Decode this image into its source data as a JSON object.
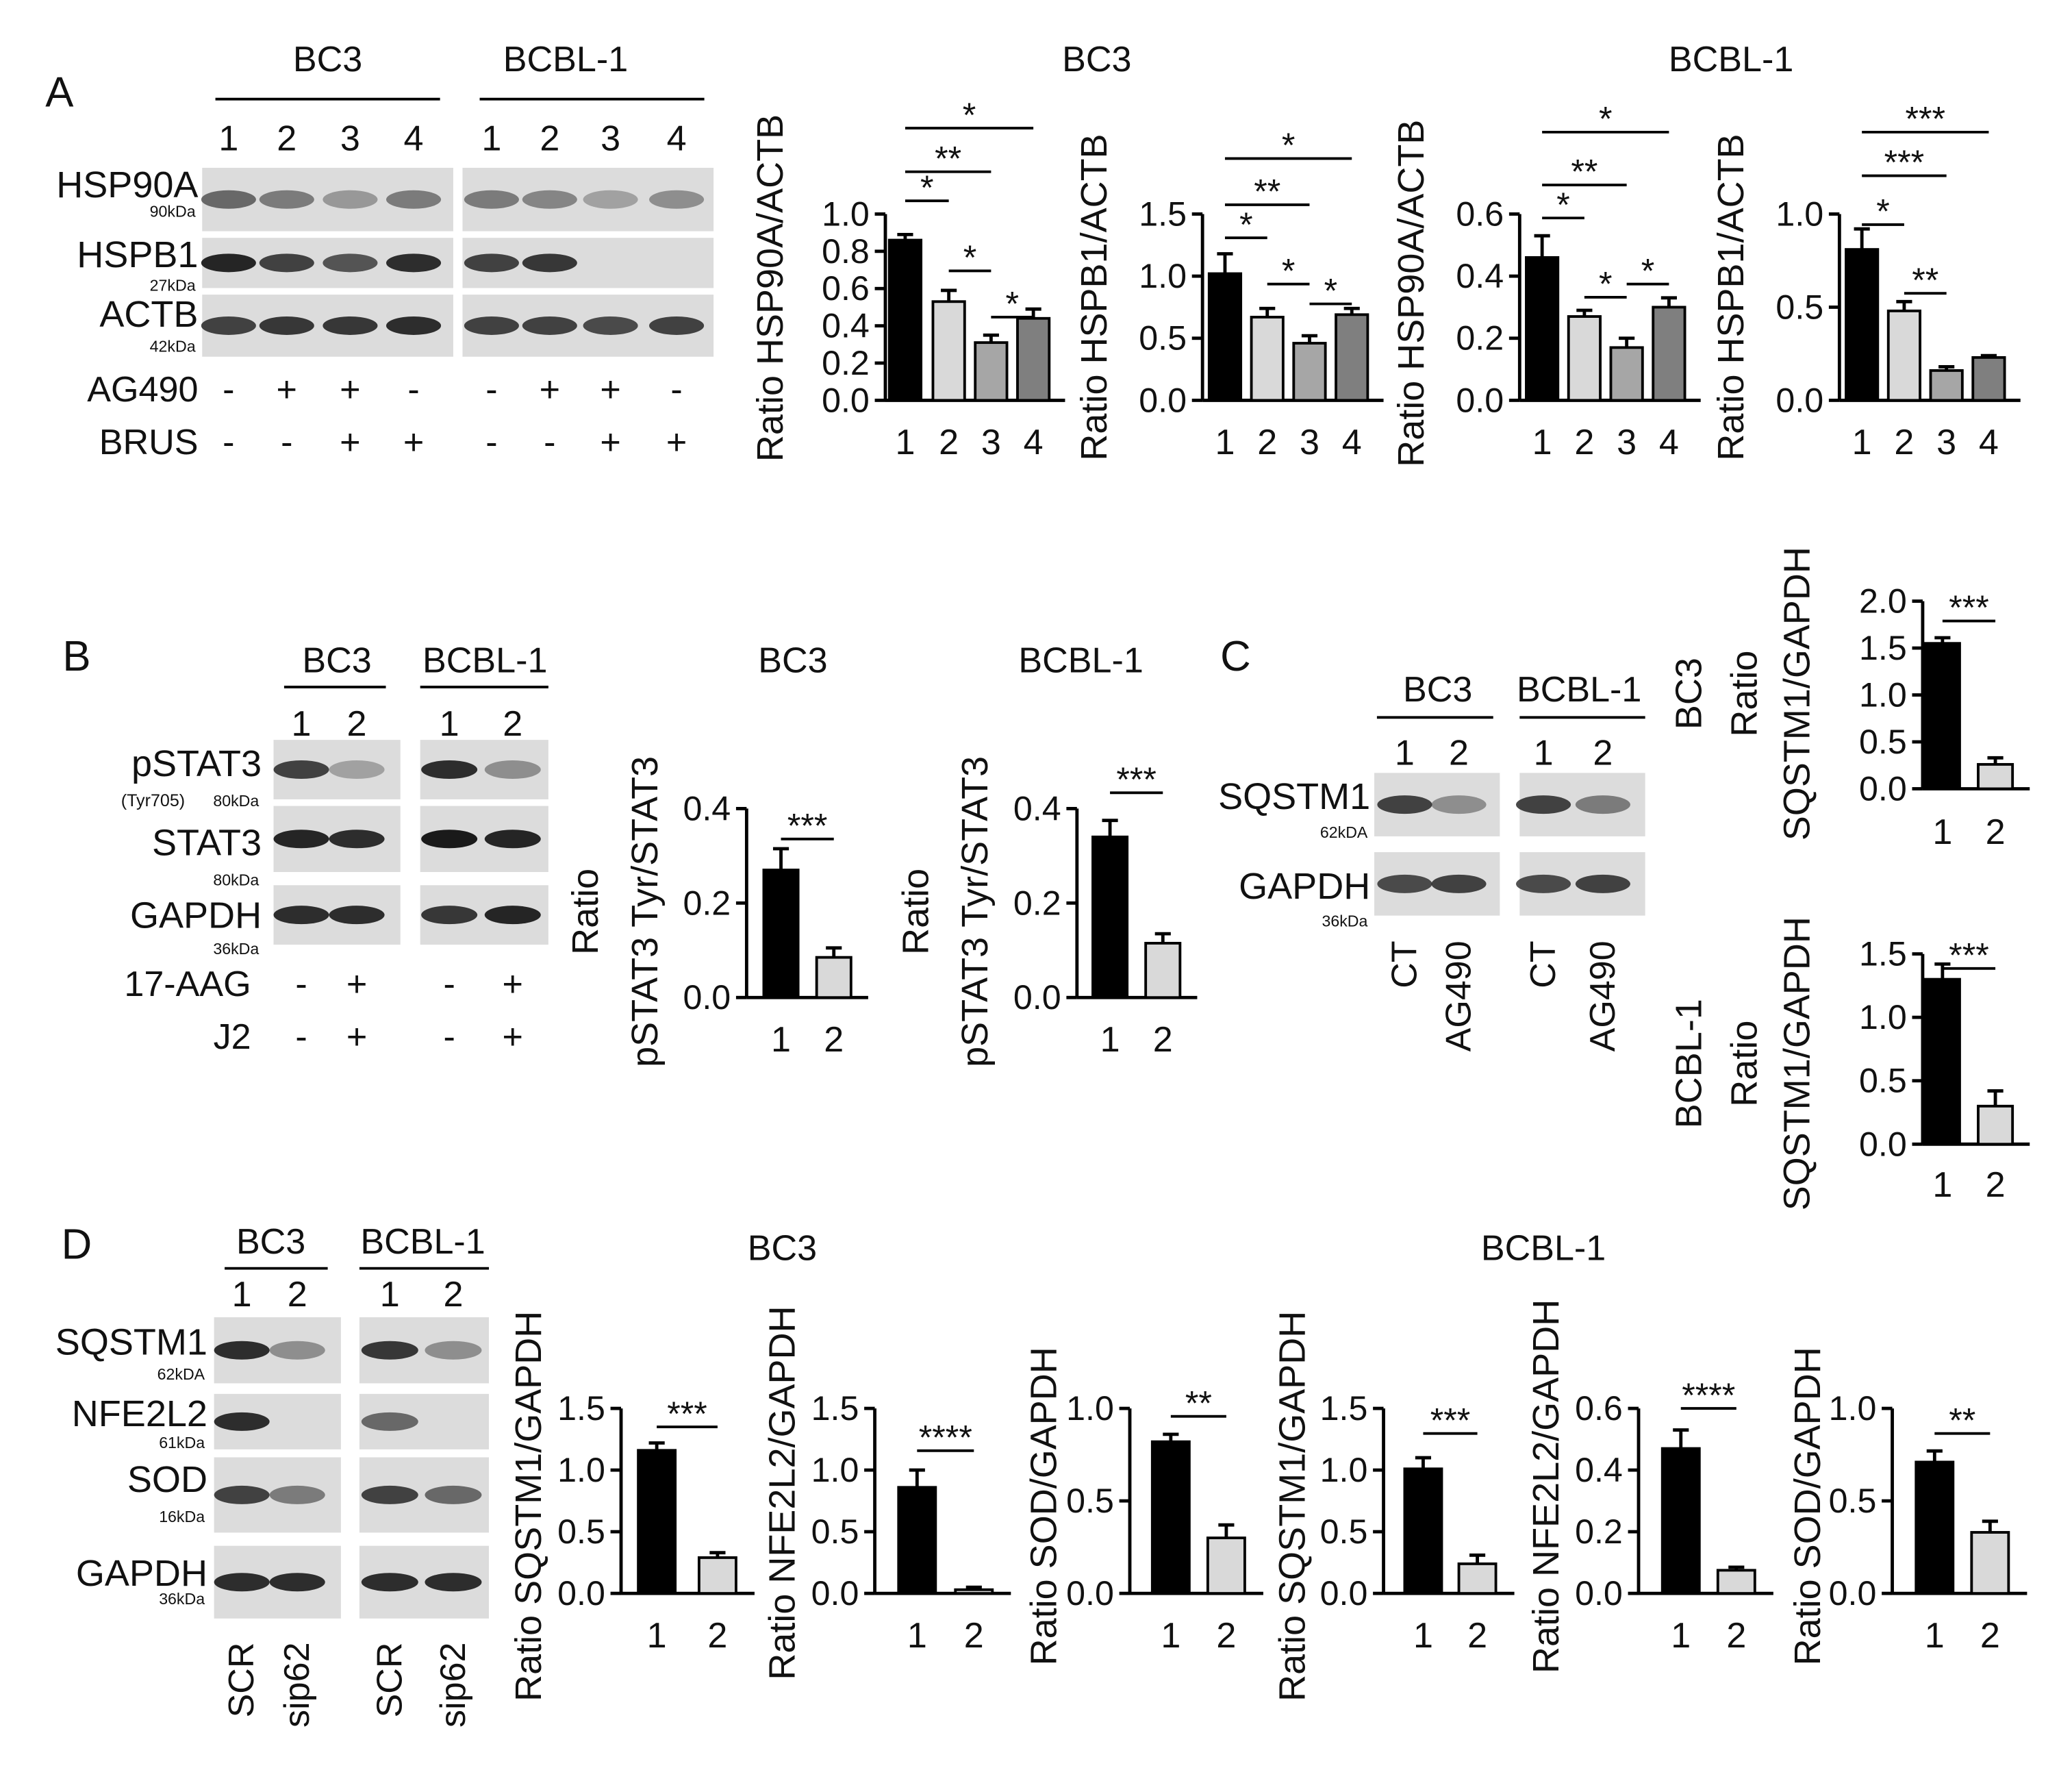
{
  "panel_letters": [
    "A",
    "B",
    "C",
    "D"
  ],
  "headings": [
    "BC3",
    "BCBL-1",
    "BC3",
    "BCBL-1",
    "BC3",
    "BCBL-1"
  ],
  "blots": [
    {
      "groups": [
        "BC3",
        "BCBL-1"
      ],
      "lanes": [
        "1",
        "2",
        "3",
        "4"
      ],
      "proteins": [
        {
          "name": "HSP90A",
          "size": "90kDa"
        },
        {
          "name": "HSPB1",
          "size": "27kDa"
        },
        {
          "name": "ACTB",
          "size": "42kDa"
        }
      ],
      "treatments": [
        {
          "name": "AG490",
          "marks": [
            "-",
            "+",
            "+",
            "-"
          ]
        },
        {
          "name": "BRUS",
          "marks": [
            "-",
            "-",
            "+",
            "+"
          ]
        }
      ]
    },
    {
      "groups": [
        "BC3",
        "BCBL-1"
      ],
      "lanes": [
        "1",
        "2"
      ],
      "proteins": [
        {
          "name": "pSTAT3",
          "note": "(Tyr705)",
          "size": "80kDa"
        },
        {
          "name": "STAT3",
          "size": "80kDa"
        },
        {
          "name": "GAPDH",
          "size": "36kDa"
        }
      ],
      "treatments": [
        {
          "name": "17-AAG",
          "marks": [
            "-",
            "+"
          ]
        },
        {
          "name": "J2",
          "marks": [
            "-",
            "+"
          ]
        }
      ]
    },
    {
      "groups": [
        "BC3",
        "BCBL-1"
      ],
      "lanes": [
        "1",
        "2"
      ],
      "proteins": [
        {
          "name": "SQSTM1",
          "size": "62kDA"
        },
        {
          "name": "GAPDH",
          "size": "36kDa"
        }
      ],
      "conditions": [
        "CT",
        "AG490"
      ]
    },
    {
      "groups": [
        "BC3",
        "BCBL-1"
      ],
      "lanes": [
        "1",
        "2"
      ],
      "proteins": [
        {
          "name": "SQSTM1",
          "size": "62kDA"
        },
        {
          "name": "NFE2L2",
          "size": "61kDa"
        },
        {
          "name": "SOD",
          "size": "16kDa"
        },
        {
          "name": "GAPDH",
          "size": "36kDa"
        }
      ],
      "conditions": [
        "SCR",
        "sip62"
      ]
    }
  ],
  "chart_data": [
    {
      "type": "bar",
      "ylabel": [
        "Ratio HSP90A/ACTB"
      ],
      "categories": [
        "1",
        "2",
        "3",
        "4"
      ],
      "values": [
        0.86,
        0.53,
        0.31,
        0.44
      ],
      "errors": [
        0.03,
        0.06,
        0.04,
        0.05
      ],
      "colors": [
        "#000000",
        "#d9d9d9",
        "#a6a6a6",
        "#7f7f7f"
      ],
      "ylim": [
        0,
        1
      ],
      "yticks": [
        {
          "value": 0,
          "label": "0.0"
        },
        0.2,
        0.4,
        0.6,
        0.8,
        {
          "value": 1,
          "label": "1.0"
        }
      ],
      "significance": [
        "*",
        "**",
        "*",
        "*",
        "*"
      ]
    },
    {
      "type": "bar",
      "ylabel": [
        "Ratio HSPB1/ACTB"
      ],
      "categories": [
        "1",
        "2",
        "3",
        "4"
      ],
      "values": [
        1.02,
        0.67,
        0.46,
        0.69
      ],
      "errors": [
        0.16,
        0.07,
        0.06,
        0.05
      ],
      "colors": [
        "#000000",
        "#d9d9d9",
        "#a6a6a6",
        "#7f7f7f"
      ],
      "ylim": [
        0,
        1.5
      ],
      "yticks": [
        {
          "value": 0,
          "label": "0.0"
        },
        0.5,
        {
          "value": 1,
          "label": "1.0"
        },
        1.5
      ],
      "significance": [
        "*",
        "**",
        "*",
        "*",
        "*"
      ]
    },
    {
      "type": "bar",
      "ylabel": [
        "Ratio HSP90A/ACTB"
      ],
      "categories": [
        "1",
        "2",
        "3",
        "4"
      ],
      "values": [
        0.46,
        0.27,
        0.17,
        0.3
      ],
      "errors": [
        0.07,
        0.02,
        0.03,
        0.03
      ],
      "colors": [
        "#000000",
        "#d9d9d9",
        "#a6a6a6",
        "#7f7f7f"
      ],
      "ylim": [
        0,
        0.6
      ],
      "yticks": [
        {
          "value": 0,
          "label": "0.0"
        },
        0.2,
        0.4,
        0.6
      ],
      "significance": [
        "*",
        "**",
        "*",
        "*",
        "*"
      ]
    },
    {
      "type": "bar",
      "ylabel": [
        "Ratio HSPB1/ACTB"
      ],
      "categories": [
        "1",
        "2",
        "3",
        "4"
      ],
      "values": [
        0.81,
        0.48,
        0.16,
        0.23
      ],
      "errors": [
        0.11,
        0.05,
        0.02,
        0.01
      ],
      "colors": [
        "#000000",
        "#d9d9d9",
        "#a6a6a6",
        "#7f7f7f"
      ],
      "ylim": [
        0,
        1
      ],
      "yticks": [
        {
          "value": 0,
          "label": "0.0"
        },
        0.5,
        {
          "value": 1,
          "label": "1.0"
        }
      ],
      "significance": [
        "*",
        "***",
        "***",
        "**"
      ]
    },
    {
      "type": "bar",
      "ylabel": [
        "Ratio",
        "pSTAT3 Tyr/STAT3"
      ],
      "categories": [
        "1",
        "2"
      ],
      "values": [
        0.27,
        0.085
      ],
      "errors": [
        0.045,
        0.02
      ],
      "colors": [
        "#000000",
        "#d9d9d9"
      ],
      "ylim": [
        0,
        0.4
      ],
      "yticks": [
        {
          "value": 0,
          "label": "0.0"
        },
        0.2,
        0.4
      ],
      "significance": [
        "***"
      ]
    },
    {
      "type": "bar",
      "ylabel": [
        "Ratio",
        "pSTAT3 Tyr/STAT3"
      ],
      "categories": [
        "1",
        "2"
      ],
      "values": [
        0.34,
        0.115
      ],
      "errors": [
        0.035,
        0.02
      ],
      "colors": [
        "#000000",
        "#d9d9d9"
      ],
      "ylim": [
        0,
        0.4
      ],
      "yticks": [
        {
          "value": 0,
          "label": "0.0"
        },
        0.2,
        0.4
      ],
      "significance": [
        "***"
      ]
    },
    {
      "type": "bar",
      "ylabel": [
        "BC3",
        "Ratio",
        "SQSTM1/GAPDH"
      ],
      "categories": [
        "1",
        "2"
      ],
      "values": [
        1.55,
        0.26
      ],
      "errors": [
        0.06,
        0.07
      ],
      "colors": [
        "#000000",
        "#d9d9d9"
      ],
      "ylim": [
        0,
        2
      ],
      "yticks": [
        {
          "value": 0,
          "label": "0.0"
        },
        0.5,
        {
          "value": 1,
          "label": "1.0"
        },
        1.5,
        {
          "value": 2,
          "label": "2.0"
        }
      ],
      "significance": [
        "***"
      ]
    },
    {
      "type": "bar",
      "ylabel": [
        "BCBL-1",
        "Ratio",
        "SQSTM1/GAPDH"
      ],
      "categories": [
        "1",
        "2"
      ],
      "values": [
        1.3,
        0.3
      ],
      "errors": [
        0.12,
        0.12
      ],
      "colors": [
        "#000000",
        "#d9d9d9"
      ],
      "ylim": [
        0,
        1.5
      ],
      "yticks": [
        {
          "value": 0,
          "label": "0.0"
        },
        0.5,
        {
          "value": 1,
          "label": "1.0"
        },
        1.5
      ],
      "significance": [
        "***"
      ]
    },
    {
      "type": "bar",
      "ylabel": [
        "Ratio SQSTM1/GAPDH"
      ],
      "categories": [
        "1",
        "2"
      ],
      "values": [
        1.16,
        0.29
      ],
      "errors": [
        0.06,
        0.04
      ],
      "colors": [
        "#000000",
        "#d9d9d9"
      ],
      "ylim": [
        0,
        1.5
      ],
      "yticks": [
        {
          "value": 0,
          "label": "0.0"
        },
        0.5,
        {
          "value": 1,
          "label": "1.0"
        },
        1.5
      ],
      "significance": [
        "***"
      ]
    },
    {
      "type": "bar",
      "ylabel": [
        "Ratio NFE2L2/GAPDH"
      ],
      "categories": [
        "1",
        "2"
      ],
      "values": [
        0.86,
        0.03
      ],
      "errors": [
        0.14,
        0.02
      ],
      "colors": [
        "#000000",
        "#d9d9d9"
      ],
      "ylim": [
        0,
        1.5
      ],
      "yticks": [
        {
          "value": 0,
          "label": "0.0"
        },
        0.5,
        {
          "value": 1,
          "label": "1.0"
        },
        1.5
      ],
      "significance": [
        "****"
      ]
    },
    {
      "type": "bar",
      "ylabel": [
        "Ratio SOD/GAPDH"
      ],
      "categories": [
        "1",
        "2"
      ],
      "values": [
        0.82,
        0.3
      ],
      "errors": [
        0.04,
        0.07
      ],
      "colors": [
        "#000000",
        "#d9d9d9"
      ],
      "ylim": [
        0,
        1
      ],
      "yticks": [
        {
          "value": 0,
          "label": "0.0"
        },
        0.5,
        {
          "value": 1,
          "label": "1.0"
        }
      ],
      "significance": [
        "**"
      ]
    },
    {
      "type": "bar",
      "ylabel": [
        "Ratio SQSTM1/GAPDH"
      ],
      "categories": [
        "1",
        "2"
      ],
      "values": [
        1.01,
        0.24
      ],
      "errors": [
        0.09,
        0.07
      ],
      "colors": [
        "#000000",
        "#d9d9d9"
      ],
      "ylim": [
        0,
        1.5
      ],
      "yticks": [
        {
          "value": 0,
          "label": "0.0"
        },
        0.5,
        {
          "value": 1,
          "label": "1.0"
        },
        1.5
      ],
      "significance": [
        "***"
      ]
    },
    {
      "type": "bar",
      "ylabel": [
        "Ratio NFE2L2/GAPDH"
      ],
      "categories": [
        "1",
        "2"
      ],
      "values": [
        0.47,
        0.075
      ],
      "errors": [
        0.06,
        0.01
      ],
      "colors": [
        "#000000",
        "#d9d9d9"
      ],
      "ylim": [
        0,
        0.6
      ],
      "yticks": [
        {
          "value": 0,
          "label": "0.0"
        },
        0.2,
        0.4,
        0.6
      ],
      "significance": [
        "****"
      ]
    },
    {
      "type": "bar",
      "ylabel": [
        "Ratio SOD/GAPDH"
      ],
      "categories": [
        "1",
        "2"
      ],
      "values": [
        0.71,
        0.33
      ],
      "errors": [
        0.06,
        0.06
      ],
      "colors": [
        "#000000",
        "#d9d9d9"
      ],
      "ylim": [
        0,
        1
      ],
      "yticks": [
        {
          "value": 0,
          "label": "0.0"
        },
        0.5,
        {
          "value": 1,
          "label": "1.0"
        }
      ],
      "significance": [
        "**"
      ]
    }
  ]
}
